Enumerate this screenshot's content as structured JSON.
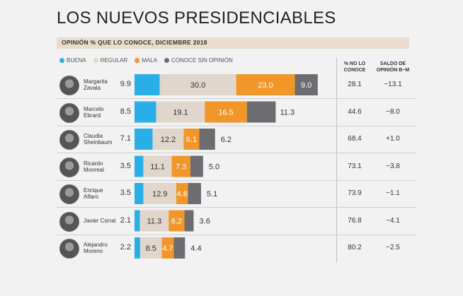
{
  "header": {
    "title": "LOS NUEVOS PRESIDENCIABLES",
    "subtitle": "OPINIÓN % QUE LO CONOCE, DICIEMBRE 2018"
  },
  "legend": [
    {
      "label": "BUENA",
      "color": "#2aaee8"
    },
    {
      "label": "REGULAR",
      "color": "#e0d6cb"
    },
    {
      "label": "MALA",
      "color": "#f3962a"
    },
    {
      "label": "CONOCE SIN OPINIÓN",
      "color": "#6b6d70"
    }
  ],
  "columns": {
    "no_lo_conoce": [
      "% NO LO",
      "CONOCE"
    ],
    "saldo": [
      "SALDO DE",
      "OPINIÓN B−M"
    ]
  },
  "chart_data": {
    "type": "bar",
    "orientation": "horizontal-stacked",
    "title": "LOS NUEVOS PRESIDENCIABLES",
    "subtitle": "OPINIÓN % QUE LO CONOCE, DICIEMBRE 2018",
    "categories": [
      "Margarita Zavala",
      "Marcelo Ebrard",
      "Claudia Sheinbaum",
      "Ricardo Monreal",
      "Enrique Alfaro",
      "Javier Corral",
      "Alejandro Moreno"
    ],
    "series": [
      {
        "name": "BUENA",
        "values": [
          9.9,
          8.5,
          7.1,
          3.5,
          3.5,
          2.1,
          2.2
        ]
      },
      {
        "name": "REGULAR",
        "values": [
          30.0,
          19.1,
          12.2,
          11.1,
          12.9,
          11.3,
          8.5
        ]
      },
      {
        "name": "MALA",
        "values": [
          23.0,
          16.5,
          6.1,
          7.3,
          4.6,
          6.2,
          4.7
        ]
      },
      {
        "name": "CONOCE SIN OPINIÓN",
        "values": [
          9.0,
          11.3,
          6.2,
          5.0,
          5.1,
          3.6,
          4.4
        ]
      }
    ],
    "labels": {
      "buena": [
        "9.9",
        "8.5",
        "7.1",
        "3.5",
        "3.5",
        "2.1",
        "2.2"
      ],
      "regular": [
        "30.0",
        "19.1",
        "12.2",
        "11.1",
        "12.9",
        "11.3",
        "8.5"
      ],
      "mala": [
        "23.0",
        "16.5",
        "6.1",
        "7.3",
        "4.6",
        "6.2",
        "4.7"
      ],
      "sin_opinion": [
        "9.0",
        "11.3",
        "6.2",
        "5.0",
        "5.1",
        "3.6",
        "4.4"
      ]
    },
    "no_lo_conoce": [
      "28.1",
      "44.6",
      "68.4",
      "73.1",
      "73.9",
      "76.8",
      "80.2"
    ],
    "saldo": [
      "−13.1",
      "−8.0",
      "+1.0",
      "−3.8",
      "−1.1",
      "−4.1",
      "−2.5"
    ],
    "name_lines": [
      [
        "Margarita",
        "Zavala"
      ],
      [
        "Marcelo",
        "Ebrard"
      ],
      [
        "Claudia",
        "Sheinbaum"
      ],
      [
        "Ricardo",
        "Monreal"
      ],
      [
        "Enrique",
        "Alfaro"
      ],
      [
        "Javier Corral"
      ],
      [
        "Alejandro",
        "Moreno"
      ]
    ]
  }
}
